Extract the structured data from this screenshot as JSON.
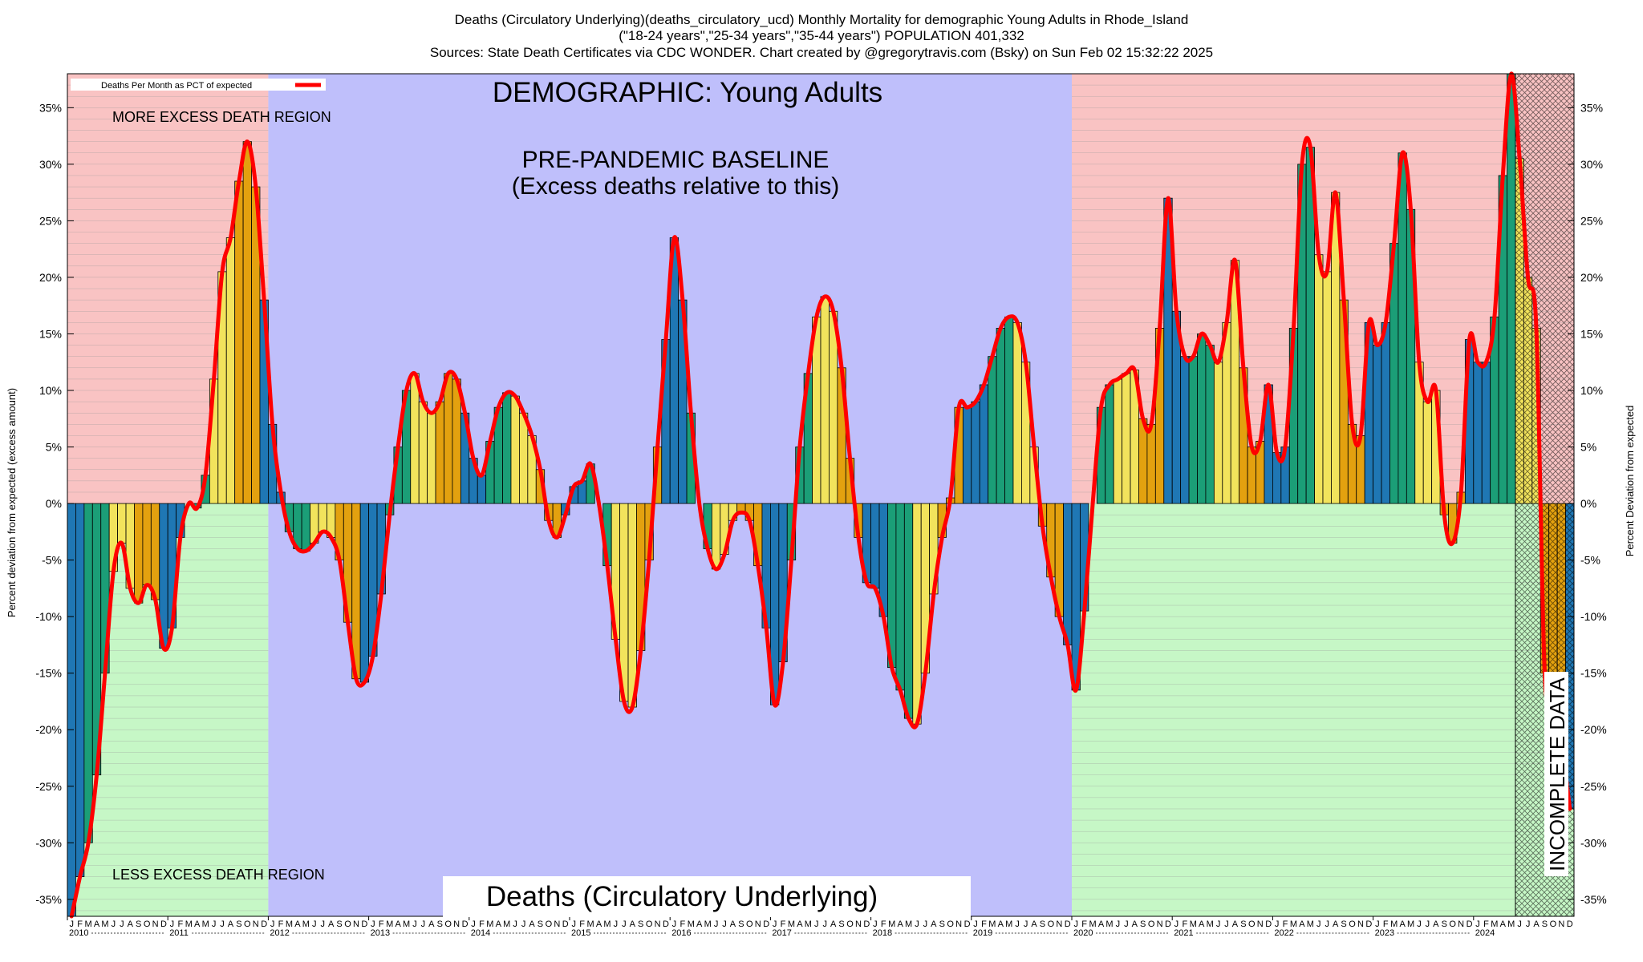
{
  "title_line1": "Deaths (Circulatory Underlying)(deaths_circulatory_ucd) Monthly Mortality for demographic Young Adults in Rhode_Island",
  "title_line2": "(\"18-24 years\",\"25-34 years\",\"35-44 years\") POPULATION 401,332",
  "title_line3": "Sources: State Death Certificates via CDC WONDER.              Chart created by @gregorytravis.com (Bsky) on Sun Feb 02 15:32:22 2025",
  "colors": {
    "excess_region": "#f9c3c3",
    "less_region": "#c6f7c6",
    "baseline_region": "#bfbffb",
    "line": "#ff0000",
    "bar_winter": "#1f77b4",
    "bar_spring": "#1b9e77",
    "bar_summer": "#f2e35c",
    "bar_fall": "#e3a10f"
  },
  "chart_data": {
    "type": "bar",
    "title": "DEMOGRAPHIC: Young Adults",
    "bottom_label": "Deaths (Circulatory Underlying)",
    "ylabel_left": "Percent deviation from expected (excess amount)",
    "ylabel_right": "Percent Deviation from expected",
    "legend_label": "Deaths Per Month as PCT of expected",
    "legend_placement": "top-left",
    "annotations": {
      "more_excess": "MORE EXCESS DEATH REGION",
      "less_excess": "LESS EXCESS DEATH REGION",
      "baseline_1": "PRE-PANDEMIC BASELINE",
      "baseline_2": "(Excess deaths relative to this)",
      "incomplete": "INCOMPLETE DATA"
    },
    "ylim": [
      -36.5,
      38
    ],
    "yticks": [
      -35,
      -30,
      -25,
      -20,
      -15,
      -10,
      -5,
      0,
      5,
      10,
      15,
      20,
      25,
      30,
      35
    ],
    "ytick_labels": [
      "-35%",
      "-30%",
      "-25%",
      "-20%",
      "-15%",
      "-10%",
      "-5%",
      "0%",
      "5%",
      "10%",
      "15%",
      "20%",
      "25%",
      "30%",
      "35%"
    ],
    "month_letters": [
      "J",
      "F",
      "M",
      "A",
      "M",
      "J",
      "J",
      "A",
      "S",
      "O",
      "N",
      "D"
    ],
    "years": [
      "2010",
      "2011",
      "2012",
      "2013",
      "2014",
      "2015",
      "2016",
      "2017",
      "2018",
      "2019",
      "2020",
      "2021",
      "2022",
      "2023",
      "2024"
    ],
    "baseline_period": [
      "2012-01",
      "2019-12"
    ],
    "incomplete_from": "2024-06",
    "start": "2010-01",
    "values": [
      -36.5,
      -33,
      -30,
      -24,
      -15,
      -6,
      -3.5,
      -7.5,
      -8.8,
      -7.2,
      -8.5,
      -12.8,
      -11,
      -3,
      0,
      -0.4,
      2.5,
      11,
      20.5,
      23.5,
      28.5,
      32,
      28,
      18,
      7,
      1,
      -2.5,
      -4,
      -4.2,
      -3.5,
      -2.5,
      -3,
      -5,
      -10.5,
      -15.5,
      -15.8,
      -13.5,
      -8,
      -1,
      5,
      10,
      11.5,
      9,
      8,
      9,
      11.5,
      11,
      8,
      4,
      2.5,
      5.5,
      8.5,
      9.8,
      9.5,
      8,
      6,
      3,
      -1.5,
      -3,
      -1,
      1.5,
      2,
      3.5,
      0,
      -5.5,
      -12,
      -17.5,
      -18,
      -13,
      -5,
      5,
      14.5,
      23.5,
      18,
      8,
      0,
      -4,
      -5.8,
      -4.5,
      -1.5,
      -0.8,
      -1.5,
      -5.5,
      -11,
      -17.8,
      -14,
      -5,
      5,
      11.5,
      16.5,
      18.3,
      17,
      12,
      4,
      -3,
      -7,
      -7.5,
      -10,
      -14.5,
      -16.5,
      -19,
      -19.5,
      -15,
      -8,
      -3,
      0.5,
      8.5,
      8.5,
      9,
      10.5,
      13,
      15.5,
      16.5,
      16,
      12.5,
      5,
      -2,
      -6.5,
      -10,
      -12.5,
      -16.5,
      -9.5,
      0,
      8.5,
      10.5,
      11,
      11.5,
      11.8,
      7.5,
      7,
      15.5,
      27,
      17,
      13,
      13,
      15,
      14,
      12.5,
      16,
      21.5,
      12,
      5,
      5.5,
      10.5,
      4.5,
      5,
      15.5,
      30,
      31.5,
      22,
      20.5,
      27.5,
      18,
      7,
      6,
      16,
      14,
      16,
      23,
      31,
      26,
      12.5,
      9,
      10,
      -1,
      -3.5,
      1,
      14.5,
      12.5,
      12.5,
      16.5,
      29,
      38,
      30.5,
      20,
      15.5,
      -15,
      -17,
      -21,
      -27
    ]
  }
}
